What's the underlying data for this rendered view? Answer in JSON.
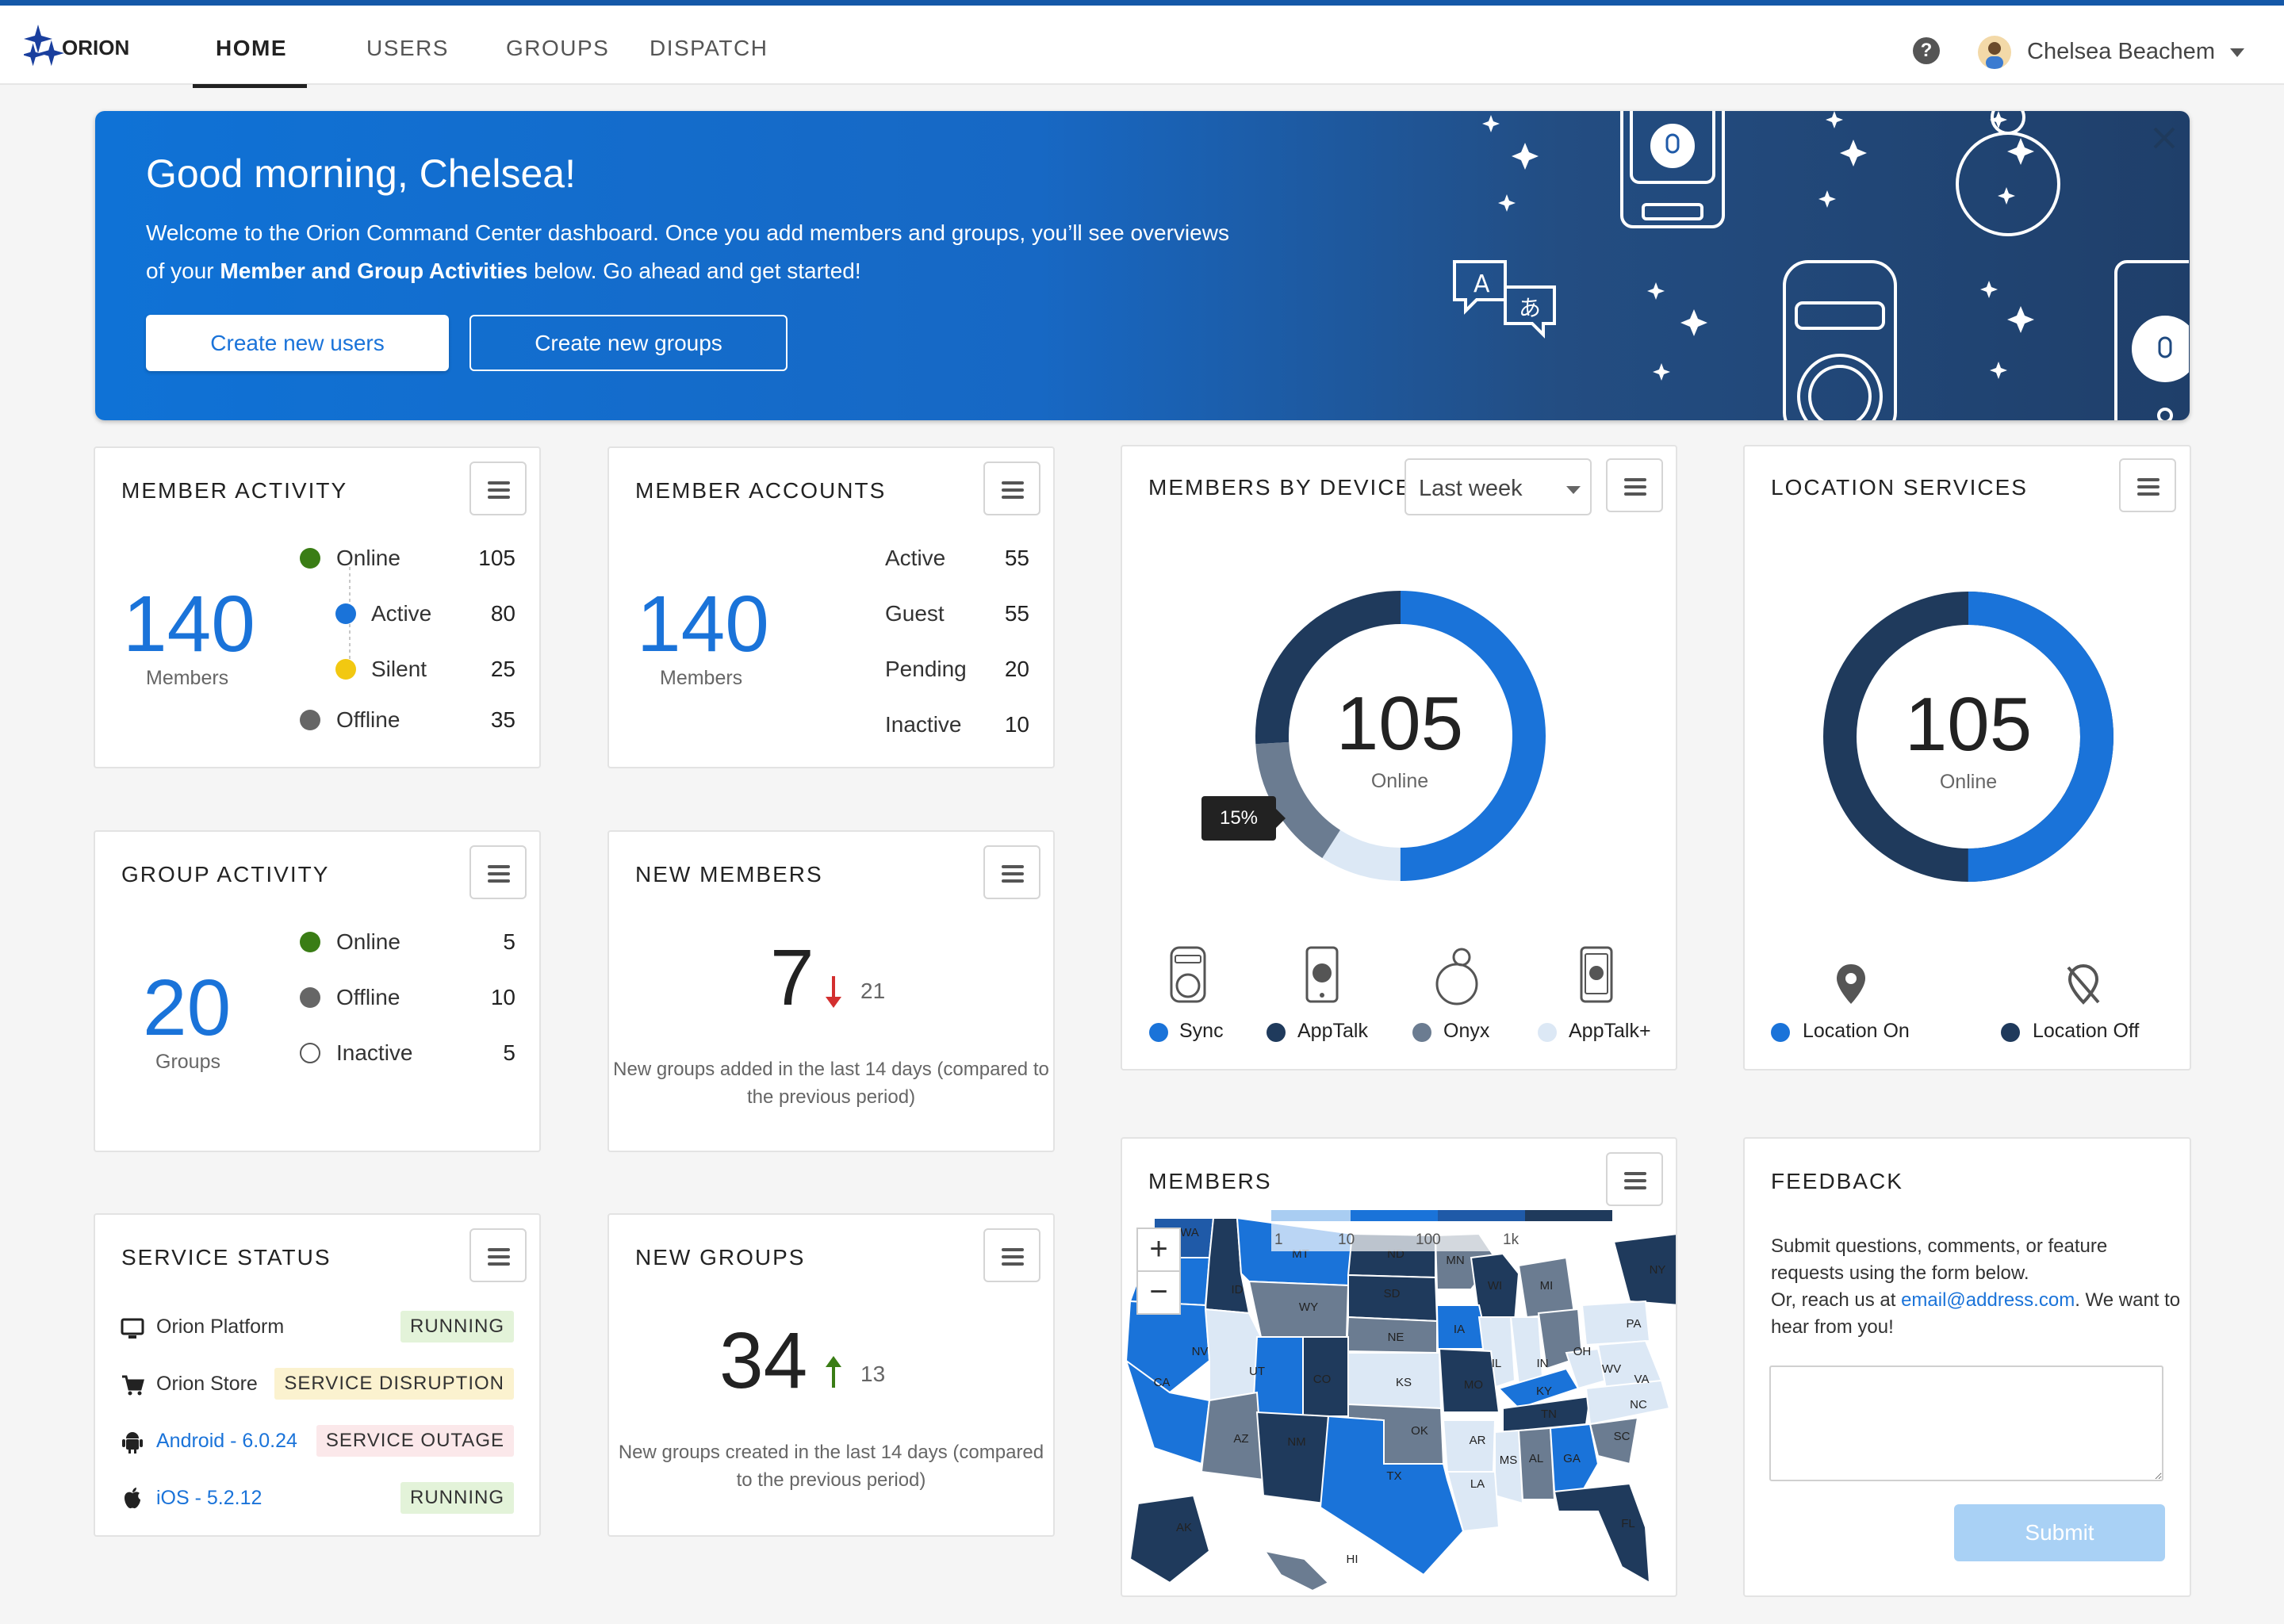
{
  "nav": {
    "logo_text": "ORION",
    "tabs": [
      {
        "label": "HOME"
      },
      {
        "label": "USERS"
      },
      {
        "label": "GROUPS"
      },
      {
        "label": "DISPATCH"
      }
    ],
    "user_name": "Chelsea Beachem",
    "help_icon": "?"
  },
  "banner": {
    "title": "Good morning, Chelsea!",
    "text_part1": "Welcome to the Orion Command Center dashboard. Once you add members and groups, you’ll see overviews of your ",
    "text_bold": "Member and Group Activities",
    "text_part2": " below. Go ahead and get started!",
    "primary_button": "Create new users",
    "secondary_button": "Create new groups"
  },
  "member_activity": {
    "title": "MEMBER ACTIVITY",
    "total": "140",
    "total_label": "Members",
    "rows": [
      {
        "label": "Online",
        "value": "105",
        "color": "#3a7d15"
      },
      {
        "label": "Active",
        "value": "80",
        "color": "#1a73d9"
      },
      {
        "label": "Silent",
        "value": "25",
        "color": "#f2c811"
      },
      {
        "label": "Offline",
        "value": "35",
        "color": "#666666"
      }
    ]
  },
  "member_accounts": {
    "title": "MEMBER ACCOUNTS",
    "total": "140",
    "total_label": "Members",
    "rows": [
      {
        "label": "Active",
        "value": "55"
      },
      {
        "label": "Guest",
        "value": "55"
      },
      {
        "label": "Pending",
        "value": "20"
      },
      {
        "label": "Inactive",
        "value": "10"
      }
    ]
  },
  "members_by_device": {
    "title": "MEMBERS BY DEVICE",
    "period": "Last week",
    "center_value": "105",
    "center_label": "Online",
    "tooltip": "15%",
    "legend": [
      {
        "label": "Sync",
        "color": "#1a73d9"
      },
      {
        "label": "AppTalk",
        "color": "#1f3a5c"
      },
      {
        "label": "Onyx",
        "color": "#6b7c91"
      },
      {
        "label": "AppTalk+",
        "color": "#dce8f5"
      }
    ]
  },
  "location_services": {
    "title": "LOCATION SERVICES",
    "center_value": "105",
    "center_label": "Online",
    "legend": [
      {
        "label": "Location On",
        "color": "#1a73d9"
      },
      {
        "label": "Location Off",
        "color": "#1f3a5c"
      }
    ]
  },
  "group_activity": {
    "title": "GROUP ACTIVITY",
    "total": "20",
    "total_label": "Groups",
    "rows": [
      {
        "label": "Online",
        "value": "5",
        "color": "#3a7d15"
      },
      {
        "label": "Offline",
        "value": "10",
        "color": "#666666"
      },
      {
        "label": "Inactive",
        "value": "5",
        "color": "#ffffff"
      }
    ]
  },
  "new_members": {
    "title": "NEW MEMBERS",
    "value": "7",
    "previous": "21",
    "trend": "down",
    "trend_color": "#d32f2f",
    "description": "New groups added in the last 14 days (compared to the previous period)"
  },
  "new_groups": {
    "title": "NEW GROUPS",
    "value": "34",
    "previous": "13",
    "trend": "up",
    "trend_color": "#3a7d15",
    "description": "New groups created in the last 14 days (compared to the previous period)"
  },
  "service_status": {
    "title": "SERVICE STATUS",
    "rows": [
      {
        "name": "Orion Platform",
        "status": "RUNNING",
        "icon": "monitor-icon",
        "badge_color": "#e3f3d9",
        "link": false
      },
      {
        "name": "Orion Store",
        "status": "SERVICE DISRUPTION",
        "icon": "cart-icon",
        "badge_color": "#fbf2cf",
        "link": false
      },
      {
        "name": "Android - 6.0.24",
        "status": "SERVICE OUTAGE",
        "icon": "android-icon",
        "badge_color": "#fbe8ea",
        "link": true
      },
      {
        "name": "iOS - 5.2.12",
        "status": "RUNNING",
        "icon": "apple-icon",
        "badge_color": "#e3f3d9",
        "link": true
      }
    ]
  },
  "members_map": {
    "title": "MEMBERS",
    "scale_labels": [
      "1",
      "10",
      "100",
      "1k"
    ],
    "scale_colors": [
      "#dce8f5",
      "#1a73d9",
      "#1f5aa8",
      "#1f3a5c"
    ],
    "zoom_in": "+",
    "zoom_out": "−",
    "states": [
      "WA",
      "MT",
      "ND",
      "MN",
      "WI",
      "MI",
      "NY",
      "ID",
      "SD",
      "WY",
      "IA",
      "OR",
      "NE",
      "PA",
      "NV",
      "UT",
      "CO",
      "IL",
      "IN",
      "OH",
      "CA",
      "KS",
      "MO",
      "KY",
      "WV",
      "VA",
      "AZ",
      "OK",
      "TN",
      "NC",
      "NM",
      "AR",
      "SC",
      "MS",
      "AL",
      "GA",
      "LA",
      "TX",
      "FL",
      "AK",
      "HI"
    ]
  },
  "feedback": {
    "title": "FEEDBACK",
    "text1": "Submit questions, comments, or feature requests using the form below.",
    "text2": "Or, reach us at ",
    "email": "email@address.com",
    "text3": ". We want to hear from you!",
    "submit": "Submit"
  }
}
